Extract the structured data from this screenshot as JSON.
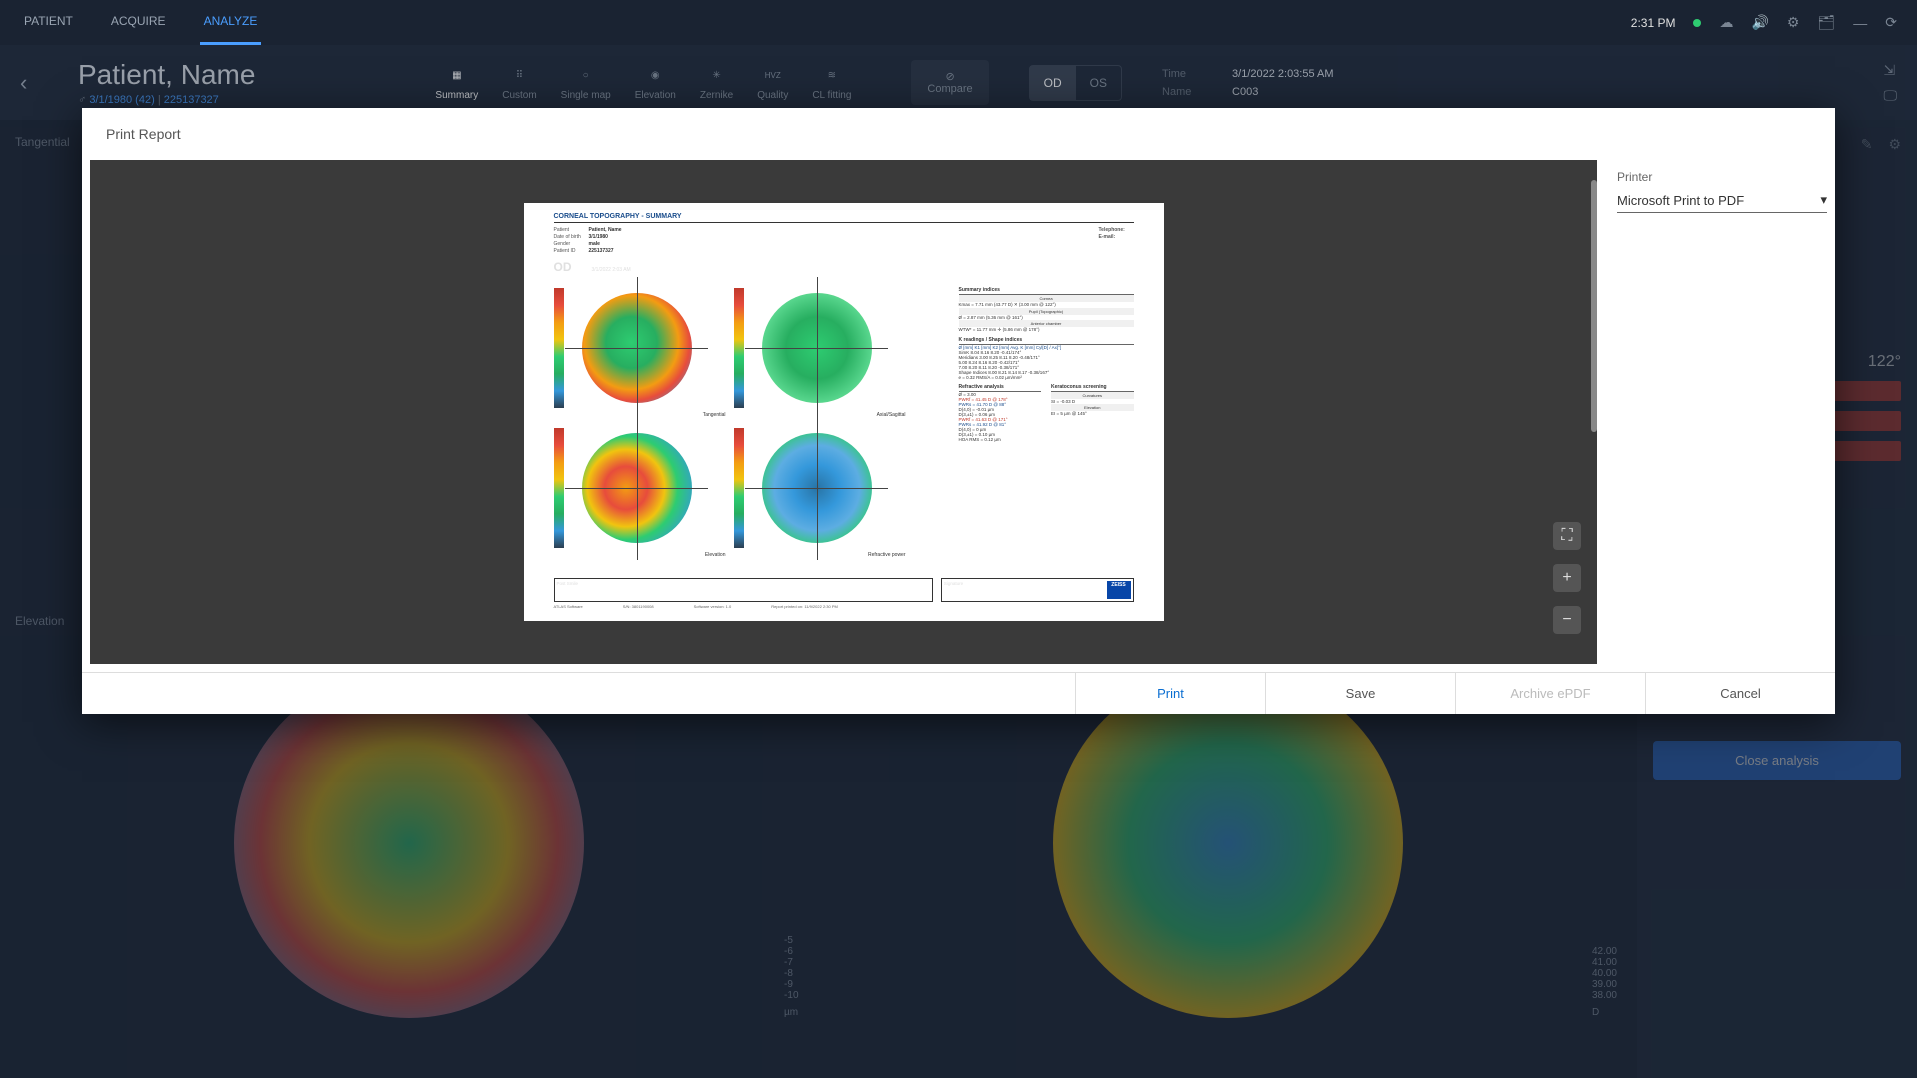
{
  "topbar": {
    "tabs": [
      "PATIENT",
      "ACQUIRE",
      "ANALYZE"
    ],
    "active_tab": 2,
    "clock": "2:31 PM"
  },
  "header": {
    "patient_name": "Patient, Name",
    "gender_icon": "♂",
    "dob": "3/1/1980 (42)",
    "pid": "225137327",
    "modes": [
      "Summary",
      "Custom",
      "Single map",
      "Elevation",
      "Zernike",
      "Quality",
      "CL fitting"
    ],
    "active_mode": 0,
    "compare": "Compare",
    "eye_od": "OD",
    "eye_os": "OS",
    "active_eye": 0,
    "time_label": "Time",
    "time_value": "3/1/2022 2:03:55 AM",
    "name_label": "Name",
    "name_value": "C003"
  },
  "workspace": {
    "panel1_label": "Tangential",
    "panel2_label": "Elevation",
    "scale_values": [
      "-5",
      "-6",
      "-7",
      "-8",
      "-9",
      "-10"
    ],
    "scale_unit": "µm",
    "scale2_values": [
      "42.00",
      "41.00",
      "40.00",
      "39.00",
      "38.00"
    ],
    "scale2_unit": "D",
    "sidebar_text": "122°",
    "close_btn": "Close analysis"
  },
  "modal": {
    "title": "Print Report",
    "printer_label": "Printer",
    "printer_value": "Microsoft Print to PDF",
    "footer": {
      "print": "Print",
      "save": "Save",
      "archive": "Archive ePDF",
      "cancel": "Cancel"
    }
  },
  "report": {
    "title": "CORNEAL TOPOGRAPHY - SUMMARY",
    "meta_left": [
      [
        "Patient",
        "Patient, Name"
      ],
      [
        "Date of birth",
        "3/1/1980"
      ],
      [
        "Gender",
        "male"
      ],
      [
        "Patient ID",
        "225137327"
      ]
    ],
    "meta_right": [
      [
        "Telephone:",
        ""
      ],
      [
        "E-mail:",
        ""
      ]
    ],
    "eye": "OD",
    "date": "3/1/2022 2:03 AM",
    "maps": [
      {
        "label": "Tangential",
        "style": "radial-gradient(circle at 45% 45%, #2ecc71 0%, #27ae60 30%, #f39c12 55%, #e74c3c 68%, #3498db 90%)"
      },
      {
        "label": "Axial/Sagittal",
        "style": "radial-gradient(circle at 50% 50%, #2ecc71 0%, #27ae60 40%, #58d68d 70%, #f4d03f 88%)"
      },
      {
        "label": "Elevation",
        "style": "radial-gradient(circle at 40% 50%, #f39c12 0%, #e74c3c 25%, #f1c40f 45%, #2ecc71 60%, #3498db 85%)"
      },
      {
        "label": "Refractive power",
        "style": "radial-gradient(circle at 50% 50%, #2874a6 0%, #3498db 30%, #5dade2 55%, #2ecc71 78%, #f4d03f 92%)"
      }
    ],
    "tables": {
      "summary_indices": "Summary indices",
      "summary_sub1": "Cornea",
      "summary_row1": "Kmax = 7.71 mm (43.77 D) ✕  (3.00 mm @ 122°)",
      "summary_sub2": "Pupil (Topographic)",
      "summary_row2": "Ø = 2.87 mm    (5.36 mm @ 161°)",
      "summary_sub3": "Anterior chamber",
      "summary_row3": "WTW* = 11.77 mm  ✛  (5.86 mm @ 178°)",
      "k_readings": "K readings / Shape indices",
      "k_head": "Ø [mm]   K1 [mm]  K2 [mm]  Avg. K [mm]  Cyl[D] / Ax[°]",
      "k_rows": [
        "SimK          8.04    8.16    8.20    -0.41/174°",
        "Meridians  3.00  8.25  8.11  8.20  -0.48/171°",
        "           5.00  8.24  8.16  8.20  -0.42/171°",
        "           7.00  8.20  8.11  8.20  -0.38/171°",
        "Shape Indices 8.00  8.21  8.14  8.17  -0.38/167°",
        "           e = 0.32         RMS/A = 0.02 µm/mm²"
      ],
      "refractive": "Refractive analysis",
      "refractive_sub": "Ø = 3.00",
      "ref_rows": [
        "PWRf = 41.45 D @ 178°",
        "PWRs = 41.70 D @ 88°",
        "D(4,0) = -0.01 µm",
        "D(3,±1) = 0.06 µm",
        "",
        "PWRf = 41.63 D @ 171°",
        "PWRs = 41.92 D @ 81°",
        "D(4,0) = 0 µm",
        "D(3,±1) = 0.10 µm",
        "HOA RMS = 0.12 µm"
      ],
      "kerato": "Keratoconus screening",
      "kerato_sub1": "Curvatures",
      "kerato_row1": "SI  = -0.03 D",
      "kerato_sub2": "Elevation",
      "kerato_row2": "EI = 5 µm @ 145°"
    },
    "sig_l": "Post Smile",
    "sig_r": "Signature",
    "logo": "ZEISS",
    "footline": [
      "ATLAS Software",
      "S/N: 3801190008",
      "Software version: 1.0",
      "Report printed on: 11/9/2022 2:30 PM"
    ]
  }
}
